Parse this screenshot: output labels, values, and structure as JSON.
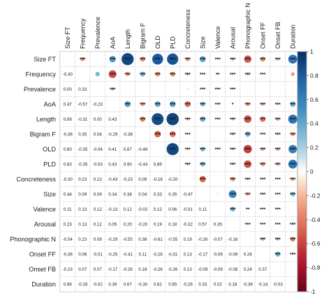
{
  "chart_data": {
    "type": "heatmap",
    "title": "",
    "variables": [
      "Size FT",
      "Frequency",
      "Prevalence",
      "AoA",
      "Length",
      "Bigram F",
      "OLD",
      "PLD",
      "Concreteness",
      "Size",
      "Valence",
      "Arousal",
      "Phonographic N",
      "Onset FF",
      "Onset FB",
      "Duration"
    ],
    "lower_triangle_values": [
      [
        -0.3
      ],
      [
        0.0,
        0.33
      ],
      [
        0.47,
        -0.57,
        -0.23
      ],
      [
        0.89,
        -0.31,
        0.0,
        0.43
      ],
      [
        -0.36,
        0.35,
        0.04,
        -0.29,
        -0.38
      ],
      [
        0.8,
        -0.35,
        -0.04,
        0.41,
        0.87,
        -0.48
      ],
      [
        0.83,
        -0.35,
        -0.03,
        0.43,
        0.9,
        -0.44,
        0.89
      ],
      [
        -0.3,
        0.23,
        0.13,
        -0.43,
        -0.23,
        0.09,
        -0.18,
        -0.2
      ],
      [
        0.44,
        0.09,
        0.09,
        0.34,
        0.38,
        0.04,
        0.33,
        0.35,
        -0.47
      ],
      [
        0.11,
        0.13,
        0.12,
        -0.13,
        0.12,
        -0.02,
        0.12,
        0.06,
        -0.01,
        0.11
      ],
      [
        0.23,
        0.13,
        0.12,
        0.05,
        0.2,
        -0.2,
        0.19,
        0.18,
        -0.32,
        0.57,
        0.35
      ],
      [
        -0.54,
        0.23,
        0.09,
        -0.29,
        -0.55,
        0.38,
        -0.61,
        -0.55,
        0.19,
        -0.26,
        -0.07,
        -0.16
      ],
      [
        -0.36,
        0.06,
        -0.01,
        -0.25,
        -0.41,
        0.11,
        -0.26,
        -0.31,
        0.13,
        -0.17,
        -0.09,
        -0.09,
        0.26
      ],
      [
        -0.23,
        0.07,
        0.07,
        -0.17,
        -0.26,
        0.18,
        -0.26,
        -0.26,
        0.13,
        -0.09,
        -0.09,
        -0.08,
        0.24,
        0.37
      ],
      [
        0.66,
        -0.28,
        -0.02,
        0.39,
        0.67,
        -0.3,
        0.62,
        0.65,
        -0.26,
        0.33,
        0.02,
        0.18,
        -0.36,
        -0.14,
        -0.03
      ]
    ],
    "significance": {
      "Size FT": [
        "***",
        "",
        "***",
        "***",
        "***",
        "***",
        "***",
        "***",
        "***",
        "***",
        "***",
        "***",
        "***",
        "***",
        "***"
      ],
      "Frequency": [
        "",
        "***",
        "***",
        "***",
        "***",
        "***",
        "***",
        "***",
        "**",
        "***",
        "***",
        "***",
        "",
        "",
        "***"
      ],
      "Prevalence": [
        "***",
        "",
        "",
        "",
        "",
        "",
        "***",
        "***",
        "***",
        "",
        "",
        "",
        "",
        ""
      ],
      "AoA": [
        "***",
        "***",
        "***",
        "***",
        "***",
        "***",
        "***",
        "*",
        "***",
        "***",
        "***",
        "***"
      ],
      "Length": [
        "***",
        "***",
        "***",
        "***",
        "***",
        "***",
        "***",
        "***",
        "***",
        "***",
        "***"
      ],
      "Bigram F": [
        "***",
        "***",
        "***",
        "",
        "",
        "***",
        "***",
        "***",
        "***",
        "***"
      ],
      "OLD": [
        "***",
        "***",
        "***",
        "***",
        "***",
        "***",
        "***",
        "***",
        "***"
      ],
      "PLD": [
        "***",
        "***",
        "",
        "***",
        "***",
        "***",
        "***",
        "***"
      ],
      "Concreteness": [
        "***",
        "",
        "***",
        "***",
        "***",
        "***",
        "***"
      ],
      "Size": [
        "",
        "***",
        "***",
        "***",
        "***",
        "***"
      ],
      "Valence": [
        "***",
        "**",
        "***",
        "***",
        ""
      ],
      "Arousal": [
        "***",
        "***",
        "***",
        "***"
      ],
      "Phonographic N": [
        "***",
        "***",
        "***"
      ],
      "Onset FF": [
        "***",
        "***"
      ],
      "Onset FB": [
        ""
      ]
    },
    "colorbar": {
      "ticks": [
        1,
        0.8,
        0.6,
        0.4,
        0.2,
        0,
        -0.2,
        -0.4,
        -0.6,
        -0.8,
        -1
      ],
      "colors": {
        "negative": "#67001f",
        "neutral": "#ffffff",
        "positive": "#053061"
      },
      "range": [
        -1,
        1
      ]
    }
  }
}
